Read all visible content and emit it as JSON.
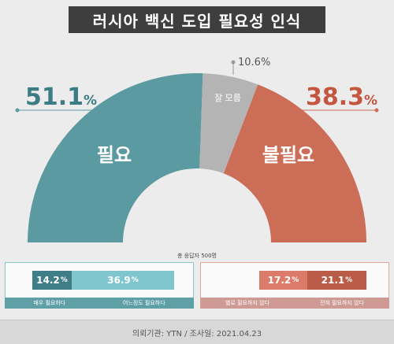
{
  "title": "러시아 백신 도입 필요성 인식",
  "chart_data": [
    {
      "type": "pie",
      "shape": "half-donut",
      "slices": [
        {
          "label": "필요",
          "value": 51.1,
          "color": "#5c9aa1"
        },
        {
          "label": "잘 모름",
          "value": 10.6,
          "color": "#b4b4b4"
        },
        {
          "label": "불필요",
          "value": 38.3,
          "color": "#cc6d58"
        }
      ],
      "value_labels": {
        "need": {
          "number": "51.1",
          "unit": "%"
        },
        "unsure": "10.6%",
        "no_need": {
          "number": "38.3",
          "unit": "%"
        }
      }
    },
    {
      "type": "bar",
      "orientation": "stacked-horizontal",
      "categories": [
        "매우 필요하다",
        "어느정도 필요하다"
      ],
      "values": [
        14.2,
        36.9
      ],
      "value_texts": [
        {
          "number": "14.2",
          "unit": "%"
        },
        {
          "number": "36.9",
          "unit": "%"
        }
      ],
      "colors": [
        "#3f7e87",
        "#7fc6cf"
      ]
    },
    {
      "type": "bar",
      "orientation": "stacked-horizontal",
      "categories": [
        "별로 필요하지 않다",
        "전혀 필요하지 않다"
      ],
      "values": [
        17.2,
        21.1
      ],
      "value_texts": [
        {
          "number": "17.2",
          "unit": "%"
        },
        {
          "number": "21.1",
          "unit": "%"
        }
      ],
      "colors": [
        "#dc7b69",
        "#b95c48"
      ]
    }
  ],
  "sample_note": "총 응답자 500명",
  "footer": "의뢰기관: YTN  /  조사일: 2021.04.23"
}
